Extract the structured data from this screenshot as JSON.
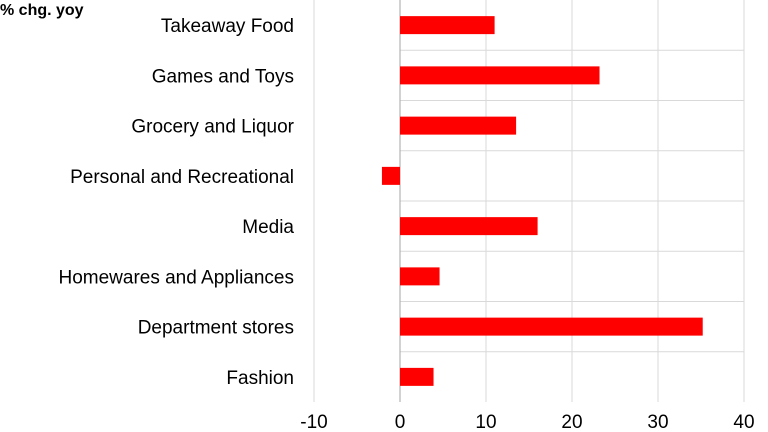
{
  "chart_data": {
    "type": "bar",
    "orientation": "horizontal",
    "unit_label": "% chg. yoy",
    "categories": [
      "Takeaway Food",
      "Games and Toys",
      "Grocery and Liquor",
      "Personal and Recreational",
      "Media",
      "Homewares and Appliances",
      "Department stores",
      "Fashion"
    ],
    "values": [
      11,
      23.2,
      13.5,
      -2.1,
      16,
      4.6,
      35.2,
      3.9
    ],
    "xlim": [
      -10,
      40
    ],
    "xticks": [
      -10,
      0,
      10,
      20,
      30,
      40
    ],
    "grid": "vertical",
    "bar_color": "#ff0000",
    "grid_color": "#d9d9d9"
  }
}
